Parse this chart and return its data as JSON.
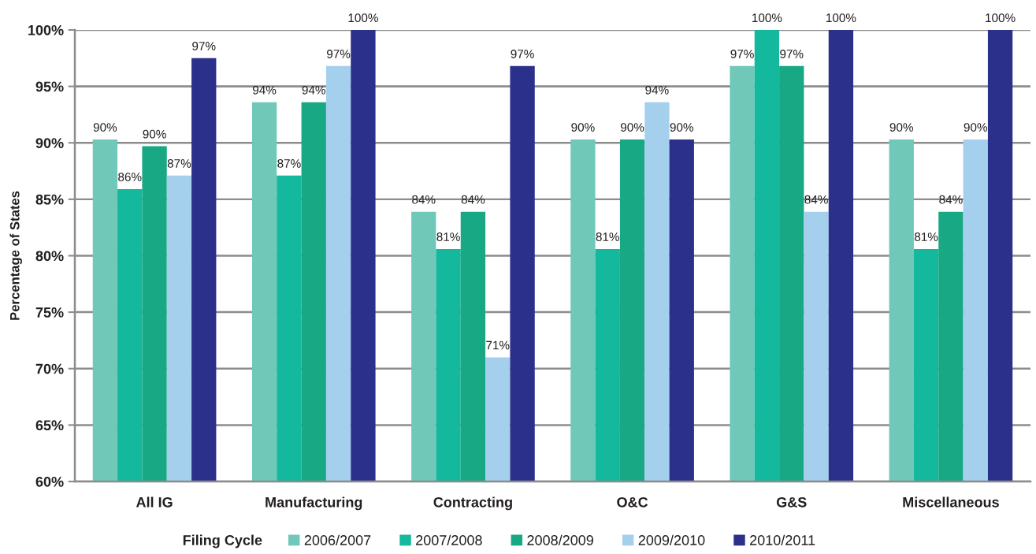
{
  "chart_data": {
    "type": "bar",
    "ylabel": "Percentage of States",
    "legend_title": "Filing Cycle",
    "legend": "bottom",
    "grid": "y",
    "categories": [
      "All IG",
      "Manufacturing",
      "Contracting",
      "O&C",
      "G&S",
      "Miscellaneous"
    ],
    "ylim": [
      60,
      100
    ],
    "yticks": [
      {
        "value": 60,
        "label": "60%"
      },
      {
        "value": 65,
        "label": "65%"
      },
      {
        "value": 70,
        "label": "70%"
      },
      {
        "value": 75,
        "label": "75%"
      },
      {
        "value": 80,
        "label": "80%"
      },
      {
        "value": 85,
        "label": "85%"
      },
      {
        "value": 90,
        "label": "90%"
      },
      {
        "value": 95,
        "label": "95%"
      },
      {
        "value": 100,
        "label": "100%"
      }
    ],
    "series": [
      {
        "name": "2006/2007",
        "color": "#70c8b8",
        "values": [
          90.3,
          93.6,
          83.9,
          90.3,
          96.8,
          90.3
        ],
        "value_labels": [
          "90%",
          "94%",
          "84%",
          "90%",
          "97%",
          "90%"
        ]
      },
      {
        "name": "2007/2008",
        "color": "#14b89c",
        "values": [
          85.9,
          87.1,
          80.6,
          80.6,
          100,
          80.6
        ],
        "value_labels": [
          "86%",
          "87%",
          "81%",
          "81%",
          "100%",
          "81%"
        ]
      },
      {
        "name": "2008/2009",
        "color": "#18a884",
        "values": [
          89.7,
          93.6,
          83.9,
          90.3,
          96.8,
          83.9
        ],
        "value_labels": [
          "90%",
          "94%",
          "84%",
          "90%",
          "97%",
          "84%"
        ]
      },
      {
        "name": "2009/2010",
        "color": "#a4d0ee",
        "values": [
          87.1,
          96.8,
          71.0,
          93.6,
          83.9,
          90.3
        ],
        "value_labels": [
          "87%",
          "97%",
          "71%",
          "94%",
          "84%",
          "90%"
        ]
      },
      {
        "name": "2010/2011",
        "color": "#2b318b",
        "values": [
          97.5,
          100,
          96.8,
          90.3,
          100,
          100
        ],
        "value_labels": [
          "97%",
          "100%",
          "97%",
          "90%",
          "100%",
          "100%"
        ]
      }
    ]
  }
}
